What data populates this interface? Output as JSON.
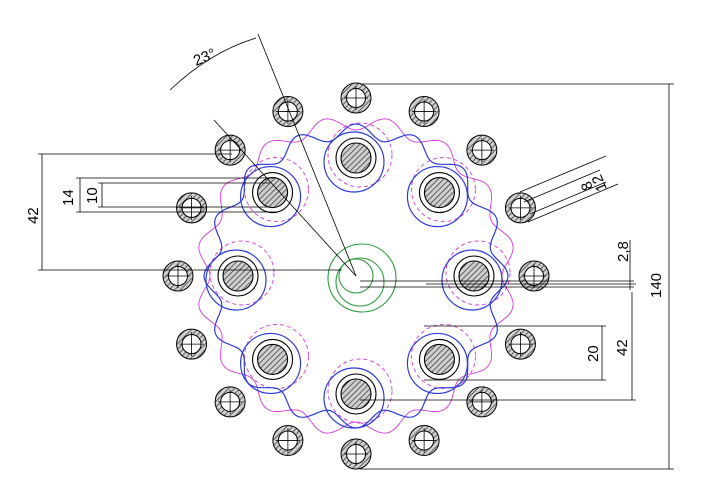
{
  "drawing": {
    "colors": {
      "outline": "#000000",
      "blue": "#2e3cd6",
      "pink": "#d23ad6",
      "green": "#2f9a3d",
      "hatch": "#888888"
    },
    "dimensions": {
      "angle": "23°",
      "dim_42_left": "42",
      "dim_14": "14",
      "dim_10": "10",
      "dim_8": "8",
      "dim_12": "12",
      "dim_2_8": "2,8",
      "dim_140": "140",
      "dim_20": "20",
      "dim_42_right": "42"
    }
  }
}
